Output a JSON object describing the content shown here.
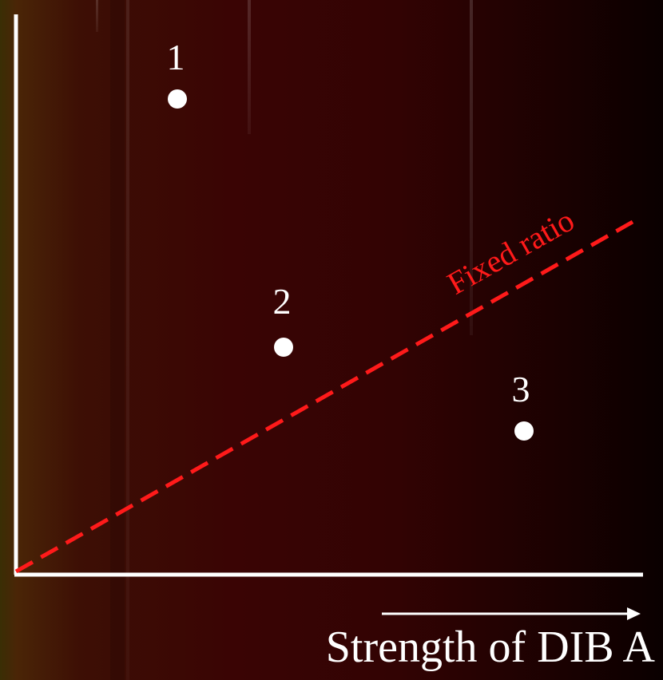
{
  "diagram": {
    "points": [
      {
        "label": "1"
      },
      {
        "label": "2"
      },
      {
        "label": "3"
      }
    ],
    "reference_line": {
      "label": "Fixed ratio",
      "style": "dashed",
      "color": "#ff1a1a"
    },
    "x_axis": {
      "title": "Strength of DIB A",
      "arrow": "right"
    },
    "colors": {
      "axes": "#ffffff",
      "points": "#ffffff",
      "background_dark": "#0a0000",
      "background_mid": "#3a0404"
    }
  }
}
